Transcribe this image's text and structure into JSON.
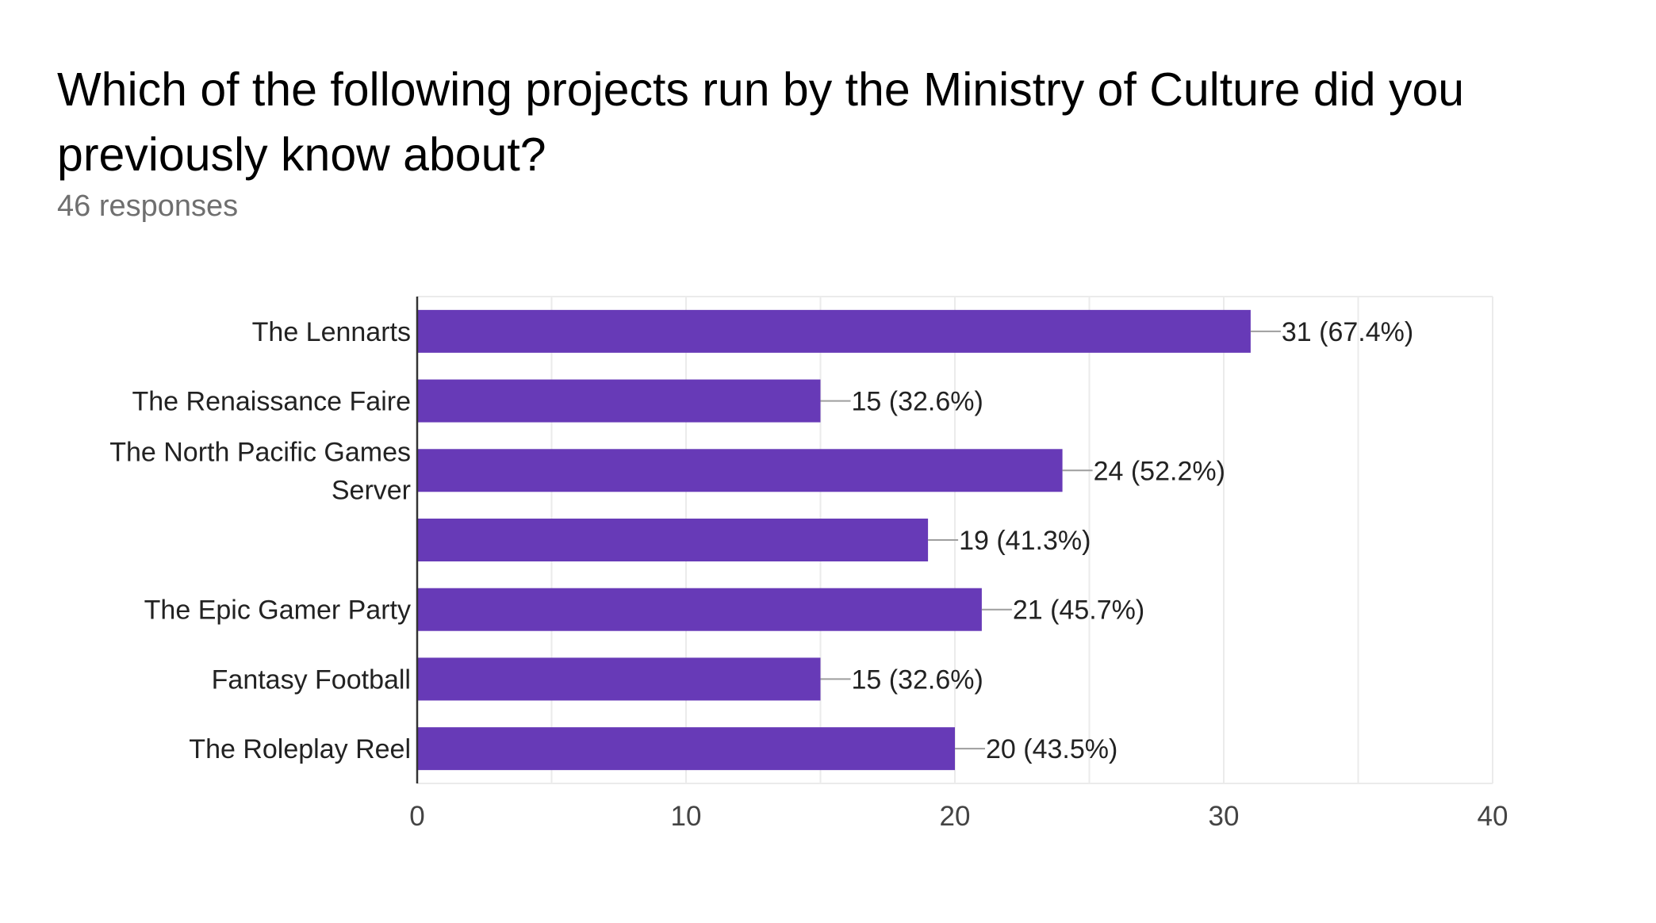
{
  "question": {
    "title": "Which of the following projects run by the Ministry of Culture did you previously know about?",
    "responses": "46 responses"
  },
  "colors": {
    "bar": "#673ab7",
    "grid": "#ebebeb",
    "axis": "#333333",
    "leader": "#9e9e9e",
    "text": "#222222",
    "tick_text": "#444444"
  },
  "chart_data": {
    "type": "bar",
    "orientation": "horizontal",
    "categories": [
      "The Lennarts",
      "The Renaissance Faire",
      "The North Pacific Games Server",
      "",
      "The Epic Gamer Party",
      "Fantasy Football",
      "The Roleplay Reel"
    ],
    "category_lines": [
      [
        "The Lennarts"
      ],
      [
        "The Renaissance Faire"
      ],
      [
        "The North Pacific Games",
        "Server"
      ],
      [],
      [
        "The Epic Gamer Party"
      ],
      [
        "Fantasy Football"
      ],
      [
        "The Roleplay Reel"
      ]
    ],
    "values": [
      31,
      15,
      24,
      19,
      21,
      15,
      20
    ],
    "data_labels": [
      "31 (67.4%)",
      "15 (32.6%)",
      "24 (52.2%)",
      "19 (41.3%)",
      "21 (45.7%)",
      "15 (32.6%)",
      "20 (43.5%)"
    ],
    "xlim": [
      0,
      40
    ],
    "x_ticks": [
      0,
      10,
      20,
      30,
      40
    ],
    "x_tick_labels": [
      "0",
      "10",
      "20",
      "30",
      "40"
    ],
    "minor_grid_step": 5,
    "grid": true,
    "legend": "none"
  }
}
